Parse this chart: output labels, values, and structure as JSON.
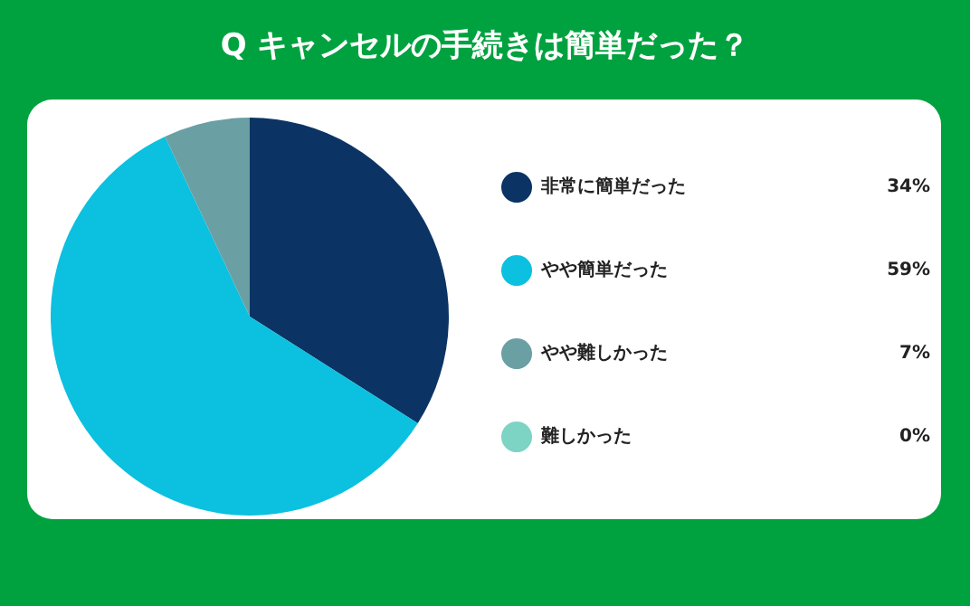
{
  "chart_data": {
    "type": "pie",
    "title": "Q キャンセルの手続きは簡単だった？",
    "categories": [
      "非常に簡単だった",
      "やや簡単だった",
      "やや難しかった",
      "難しかった"
    ],
    "values": [
      34,
      59,
      7,
      0
    ],
    "colors": [
      "#0b3464",
      "#0cc0df",
      "#6a9fa3",
      "#7dd3c4"
    ],
    "value_labels": [
      "34%",
      "59%",
      "7%",
      "0%"
    ],
    "legend": "right"
  }
}
